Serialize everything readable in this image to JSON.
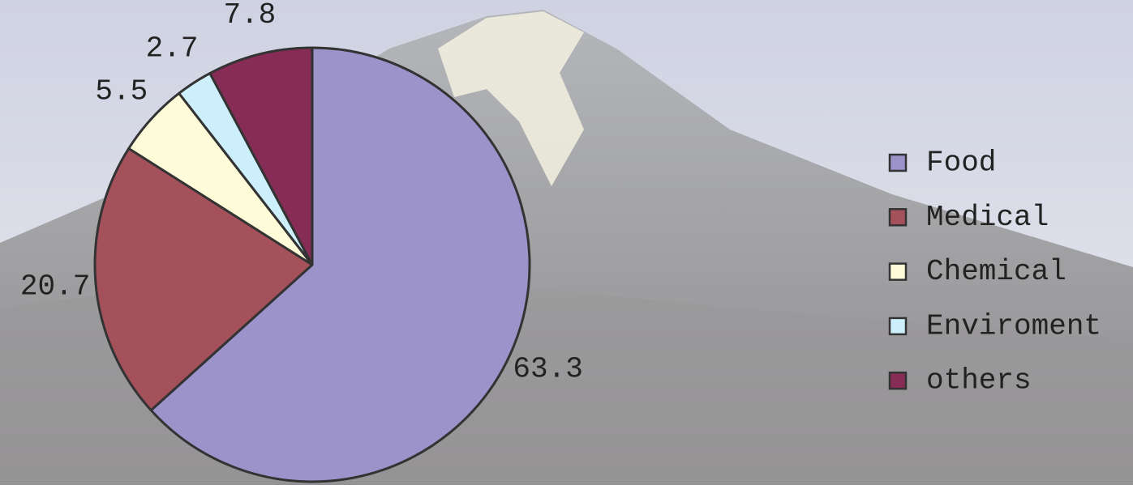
{
  "chart_data": {
    "type": "pie",
    "categories": [
      "Food",
      "Medical",
      "Chemical",
      "Enviroment",
      "others"
    ],
    "values": [
      63.3,
      20.7,
      5.5,
      2.7,
      7.8
    ],
    "colors": [
      "#9b93c9",
      "#a5515c",
      "#fefbd9",
      "#cdeffc",
      "#862c56"
    ],
    "legend": "right"
  }
}
